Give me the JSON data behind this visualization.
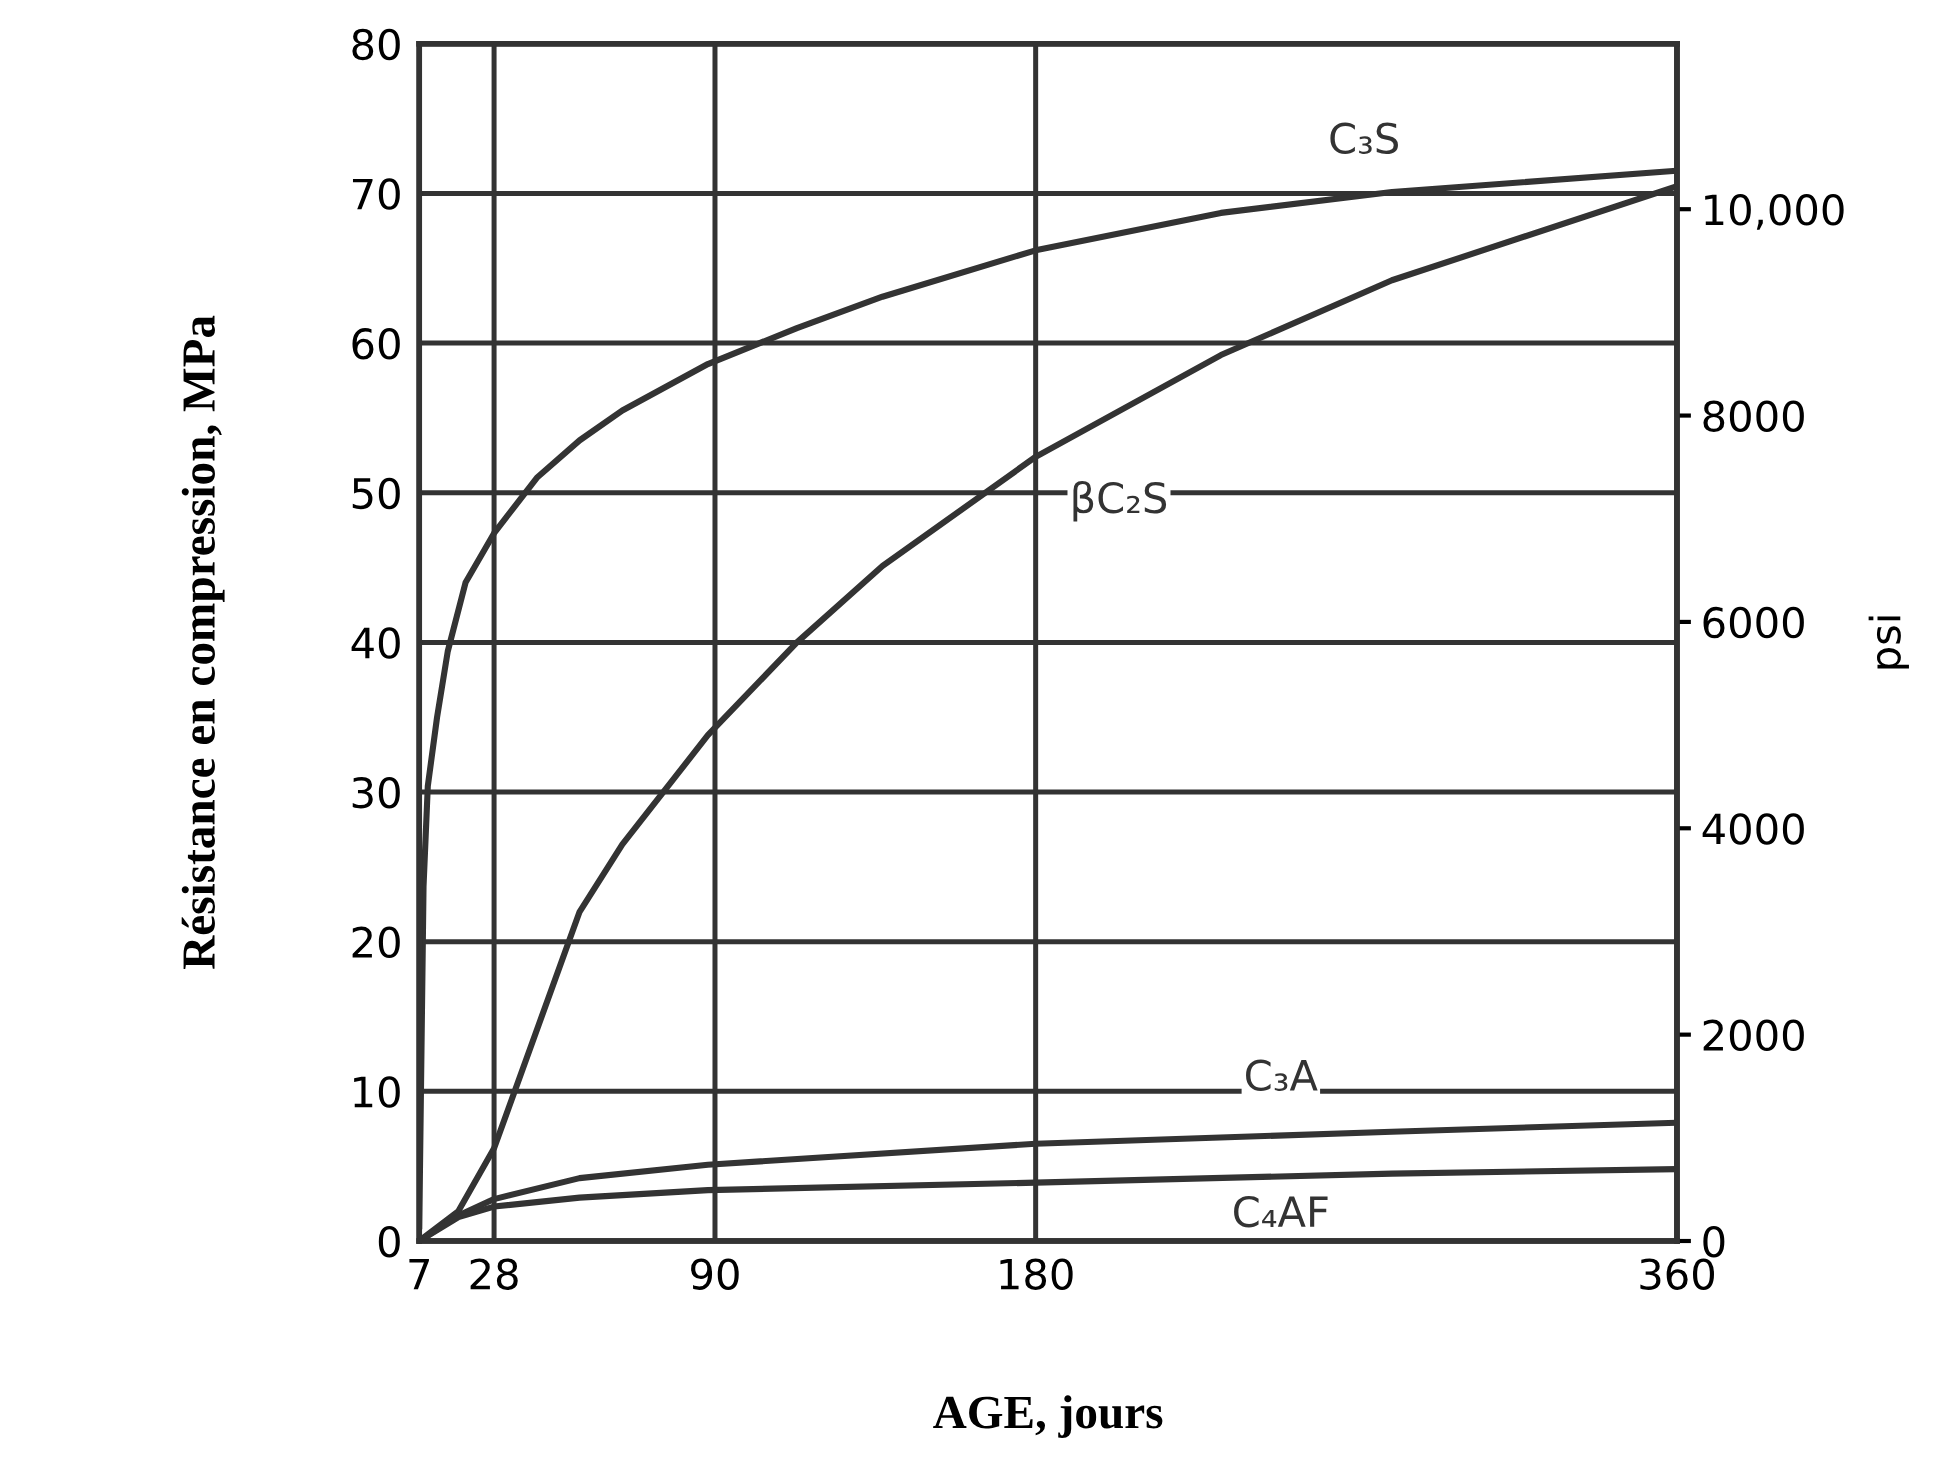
{
  "chart_data": {
    "type": "line",
    "xlabel": "AGE, jours",
    "ylabel": "Résistance en compression, MPa",
    "y2label": "psi",
    "xlim": [
      7,
      360
    ],
    "xticks": [
      7,
      28,
      90,
      180,
      360
    ],
    "ylim": [
      0,
      80
    ],
    "yticks": [
      0,
      10,
      20,
      30,
      40,
      50,
      60,
      70,
      80
    ],
    "y2lim": [
      0,
      11603
    ],
    "y2ticks": [
      0,
      2000,
      4000,
      6000,
      8000,
      {
        "value": 10000,
        "label": "10,000"
      }
    ],
    "grid": true,
    "legend": false,
    "marker": "none",
    "line_style": "solid",
    "series": [
      {
        "name": "C₃S",
        "color": "#333333",
        "x": [
          7,
          8.2,
          9.4,
          12,
          15,
          20,
          28,
          40,
          52,
          64,
          88,
          113,
          137,
          180,
          232,
          280,
          359
        ],
        "values": [
          1,
          23.7,
          30.4,
          35,
          39.4,
          44,
          47.3,
          51,
          53.5,
          55.5,
          58.6,
          61,
          63.1,
          66.2,
          68.7,
          70.1,
          71.5
        ]
      },
      {
        "name": "βC₂S",
        "color": "#333333",
        "x": [
          7,
          18,
          28,
          40,
          52,
          64,
          88,
          113,
          137,
          180,
          232,
          280,
          359
        ],
        "values": [
          0,
          2,
          6.2,
          14.1,
          22,
          26.5,
          33.8,
          40,
          45.1,
          52.4,
          59.2,
          64.2,
          70.4
        ]
      },
      {
        "name": "C₃A",
        "color": "#333333",
        "x": [
          7,
          18,
          28,
          52,
          88,
          180,
          280,
          359
        ],
        "values": [
          0,
          1.7,
          2.8,
          4.2,
          5.1,
          6.5,
          7.3,
          7.9
        ]
      },
      {
        "name": "C₄AF",
        "color": "#333333",
        "x": [
          7,
          18,
          28,
          52,
          88,
          180,
          280,
          359
        ],
        "values": [
          0,
          1.6,
          2.3,
          2.9,
          3.4,
          3.9,
          4.5,
          4.8
        ]
      }
    ]
  }
}
